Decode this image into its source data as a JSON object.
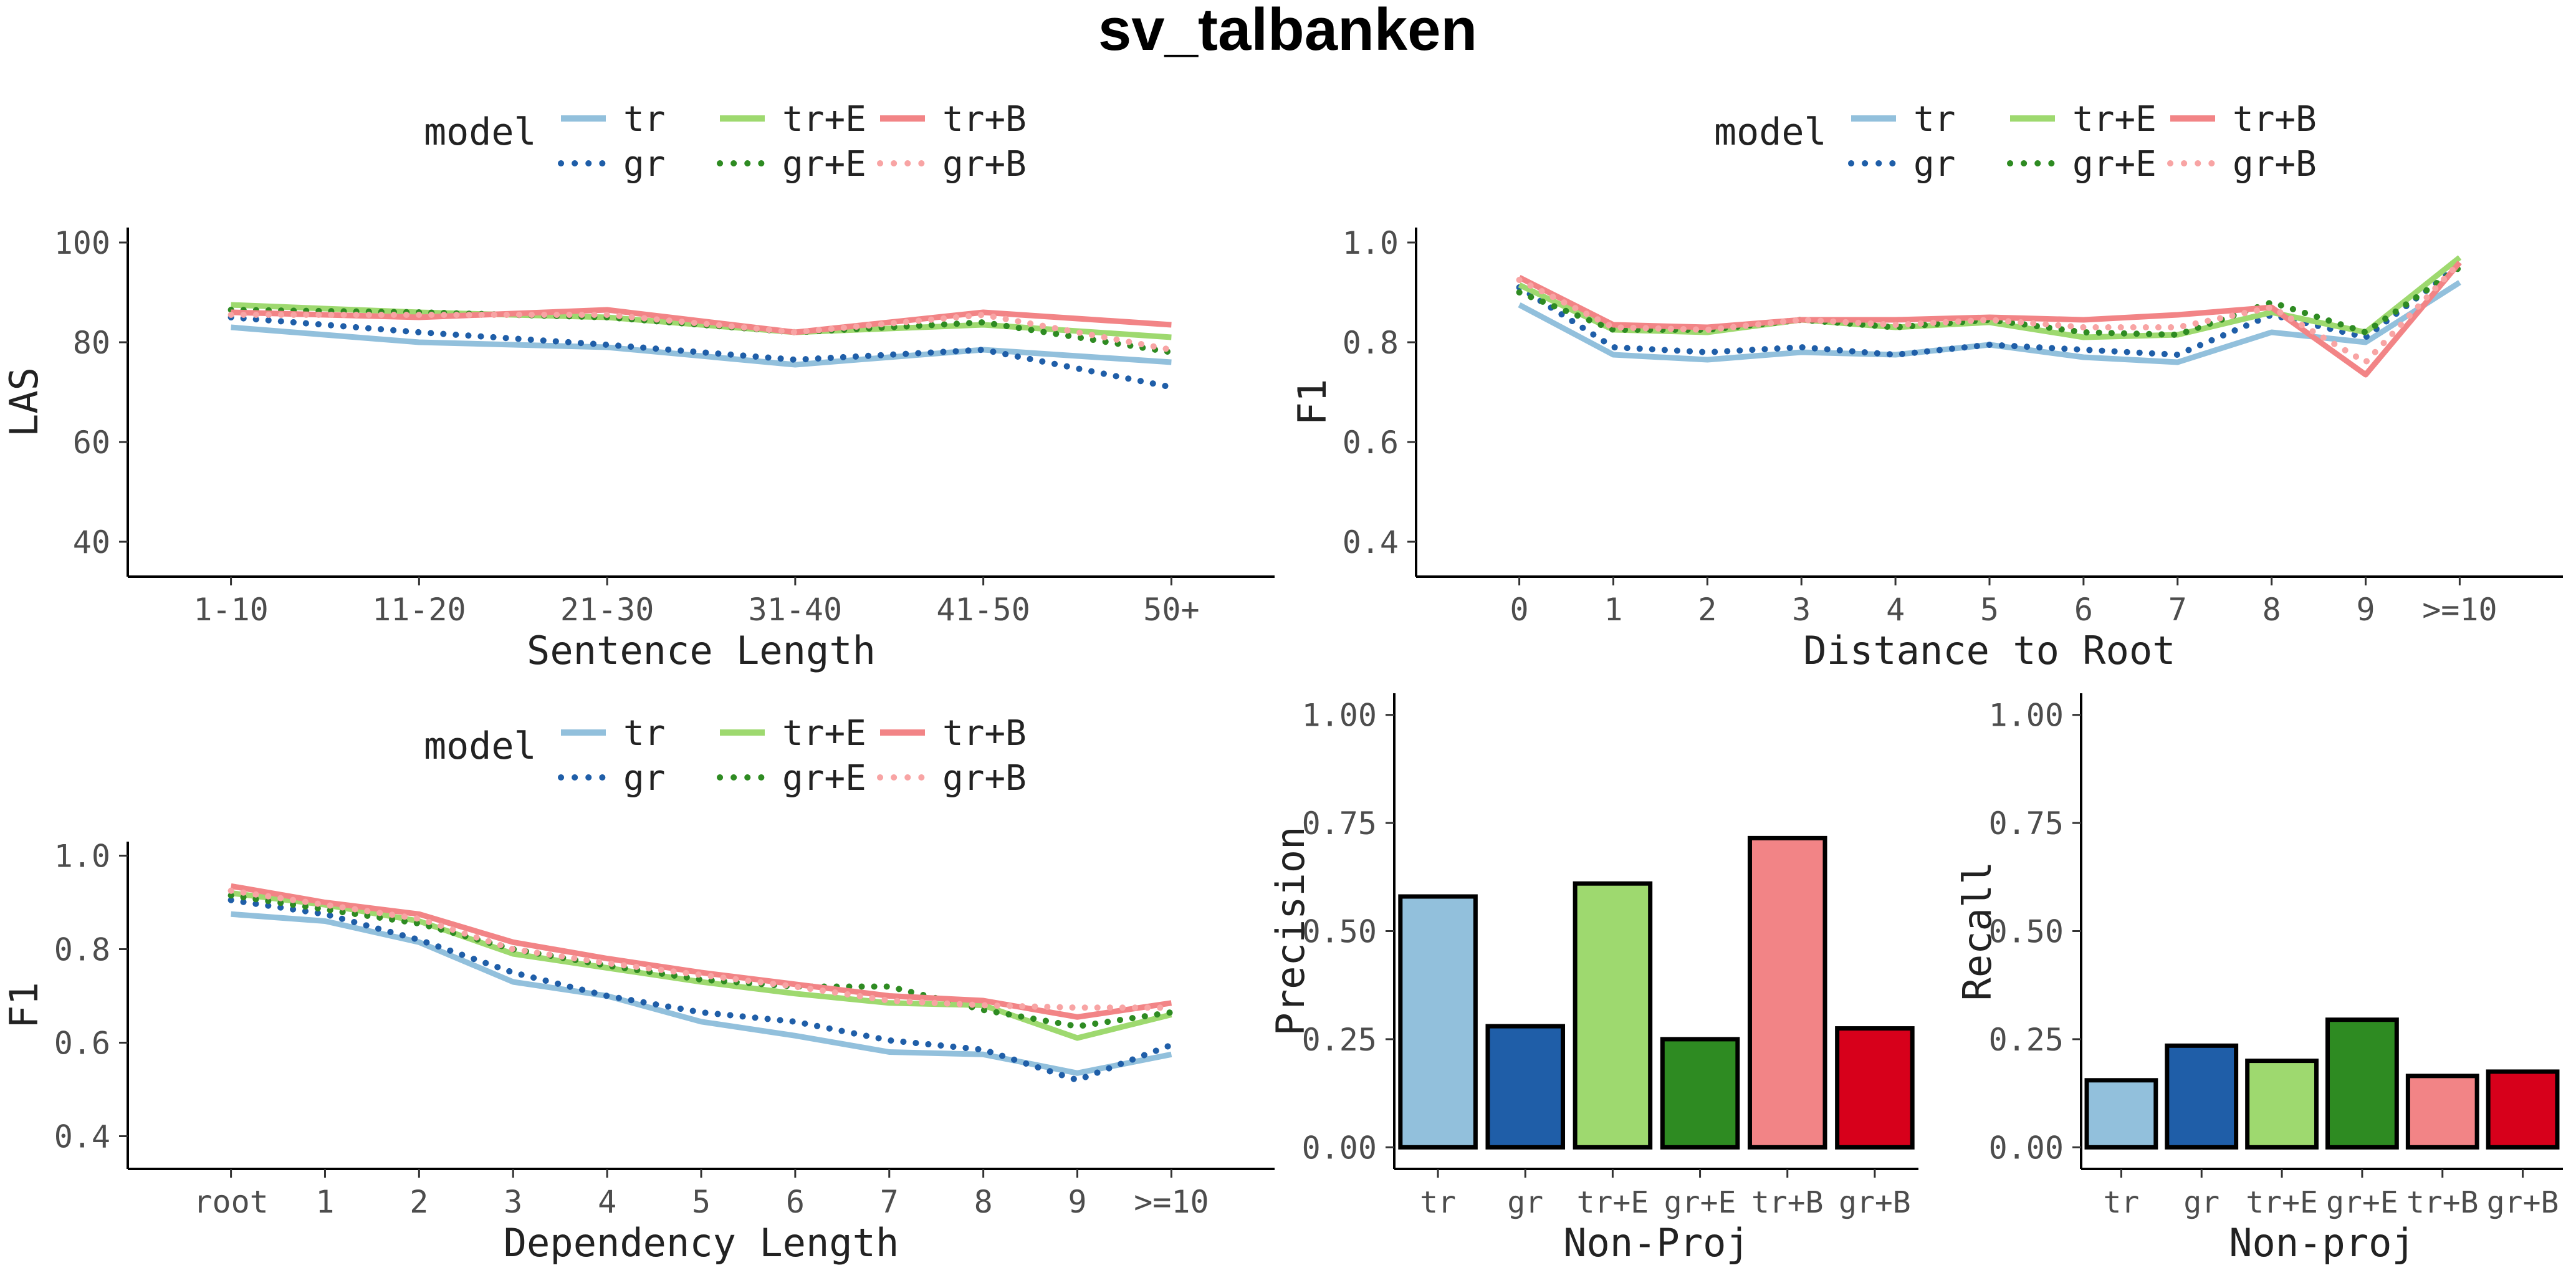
{
  "title": "sv_talbanken",
  "legend": {
    "title": "model",
    "entries": [
      {
        "key": "tr",
        "label": "tr",
        "color": "#92c0dc",
        "dash": "solid"
      },
      {
        "key": "trE",
        "label": "tr+E",
        "color": "#9ed96f",
        "dash": "solid"
      },
      {
        "key": "trB",
        "label": "tr+B",
        "color": "#f28486",
        "dash": "solid"
      },
      {
        "key": "gr",
        "label": "gr",
        "color": "#1f5ea8",
        "dash": "dotted"
      },
      {
        "key": "grE",
        "label": "gr+E",
        "color": "#2e8b22",
        "dash": "dotted"
      },
      {
        "key": "grB",
        "label": "gr+B",
        "color": "#f8a4a4",
        "dash": "dotted"
      }
    ]
  },
  "chart_data": [
    {
      "type": "line",
      "xlabel": "Sentence Length",
      "ylabel": "LAS",
      "categories": [
        "1-10",
        "11-20",
        "21-30",
        "31-40",
        "41-50",
        "50+"
      ],
      "ylim": [
        33,
        103
      ],
      "yticks": [
        40,
        60,
        80,
        100
      ],
      "series": [
        {
          "name": "tr",
          "values": [
            83,
            80,
            79,
            75.5,
            78.5,
            76
          ]
        },
        {
          "name": "gr",
          "values": [
            85,
            82,
            79.5,
            76.5,
            78.5,
            71
          ]
        },
        {
          "name": "tr+E",
          "values": [
            87.5,
            86,
            85,
            82,
            83.5,
            81
          ]
        },
        {
          "name": "gr+E",
          "values": [
            86.5,
            86,
            85,
            82,
            84,
            78
          ]
        },
        {
          "name": "tr+B",
          "values": [
            86,
            85,
            86.5,
            82,
            86,
            83.5
          ]
        },
        {
          "name": "gr+B",
          "values": [
            85.5,
            85.5,
            85.5,
            82,
            85.5,
            78.5
          ]
        }
      ]
    },
    {
      "type": "line",
      "xlabel": "Distance to Root",
      "ylabel": "F1",
      "categories": [
        "0",
        "1",
        "2",
        "3",
        "4",
        "5",
        "6",
        "7",
        "8",
        "9",
        ">=10"
      ],
      "ylim": [
        0.33,
        1.03
      ],
      "yticks": [
        "0.4",
        "0.6",
        "0.8",
        "1.0"
      ],
      "series": [
        {
          "name": "tr",
          "values": [
            0.875,
            0.775,
            0.765,
            0.78,
            0.775,
            0.795,
            0.77,
            0.76,
            0.82,
            0.8,
            0.92
          ]
        },
        {
          "name": "gr",
          "values": [
            0.91,
            0.79,
            0.78,
            0.79,
            0.775,
            0.795,
            0.785,
            0.775,
            0.855,
            0.81,
            0.955
          ]
        },
        {
          "name": "tr+E",
          "values": [
            0.915,
            0.825,
            0.82,
            0.845,
            0.83,
            0.84,
            0.81,
            0.815,
            0.86,
            0.82,
            0.97
          ]
        },
        {
          "name": "gr+E",
          "values": [
            0.9,
            0.825,
            0.825,
            0.845,
            0.83,
            0.845,
            0.82,
            0.815,
            0.88,
            0.82,
            0.95
          ]
        },
        {
          "name": "tr+B",
          "values": [
            0.93,
            0.835,
            0.83,
            0.845,
            0.845,
            0.85,
            0.845,
            0.855,
            0.87,
            0.735,
            0.96
          ]
        },
        {
          "name": "gr+B",
          "values": [
            0.925,
            0.83,
            0.825,
            0.845,
            0.835,
            0.845,
            0.83,
            0.83,
            0.87,
            0.76,
            0.96
          ]
        }
      ]
    },
    {
      "type": "line",
      "xlabel": "Dependency Length",
      "ylabel": "F1",
      "categories": [
        "root",
        "1",
        "2",
        "3",
        "4",
        "5",
        "6",
        "7",
        "8",
        "9",
        ">=10"
      ],
      "ylim": [
        0.33,
        1.03
      ],
      "yticks": [
        "0.4",
        "0.6",
        "0.8",
        "1.0"
      ],
      "series": [
        {
          "name": "tr",
          "values": [
            0.875,
            0.86,
            0.815,
            0.73,
            0.7,
            0.645,
            0.615,
            0.58,
            0.575,
            0.535,
            0.575
          ]
        },
        {
          "name": "gr",
          "values": [
            0.905,
            0.875,
            0.82,
            0.75,
            0.7,
            0.665,
            0.645,
            0.605,
            0.585,
            0.52,
            0.595
          ]
        },
        {
          "name": "tr+E",
          "values": [
            0.92,
            0.895,
            0.86,
            0.79,
            0.76,
            0.73,
            0.705,
            0.685,
            0.68,
            0.61,
            0.66
          ]
        },
        {
          "name": "gr+E",
          "values": [
            0.915,
            0.885,
            0.855,
            0.8,
            0.765,
            0.735,
            0.72,
            0.72,
            0.67,
            0.635,
            0.665
          ]
        },
        {
          "name": "tr+B",
          "values": [
            0.935,
            0.9,
            0.875,
            0.815,
            0.78,
            0.75,
            0.725,
            0.7,
            0.69,
            0.655,
            0.685
          ]
        },
        {
          "name": "gr+B",
          "values": [
            0.925,
            0.895,
            0.865,
            0.8,
            0.77,
            0.745,
            0.72,
            0.69,
            0.68,
            0.675,
            0.675
          ]
        }
      ]
    },
    {
      "type": "bar",
      "xlabel": "Non-Proj",
      "ylabel": "Precision",
      "categories": [
        "tr",
        "gr",
        "tr+E",
        "gr+E",
        "tr+B",
        "gr+B"
      ],
      "values": [
        0.58,
        0.28,
        0.61,
        0.25,
        0.715,
        0.275
      ],
      "colors": [
        "#92c0dc",
        "#1f5ea8",
        "#9ed96f",
        "#2e8b22",
        "#f28486",
        "#d7001b"
      ],
      "ylim": [
        -0.05,
        1.05
      ],
      "yticks": [
        "0.00",
        "0.25",
        "0.50",
        "0.75",
        "1.00"
      ]
    },
    {
      "type": "bar",
      "xlabel": "Non-proj",
      "ylabel": "Recall",
      "categories": [
        "tr",
        "gr",
        "tr+E",
        "gr+E",
        "tr+B",
        "gr+B"
      ],
      "values": [
        0.155,
        0.235,
        0.2,
        0.295,
        0.165,
        0.175
      ],
      "colors": [
        "#92c0dc",
        "#1f5ea8",
        "#9ed96f",
        "#2e8b22",
        "#f28486",
        "#d7001b"
      ],
      "ylim": [
        -0.05,
        1.05
      ],
      "yticks": [
        "0.00",
        "0.25",
        "0.50",
        "0.75",
        "1.00"
      ]
    }
  ]
}
